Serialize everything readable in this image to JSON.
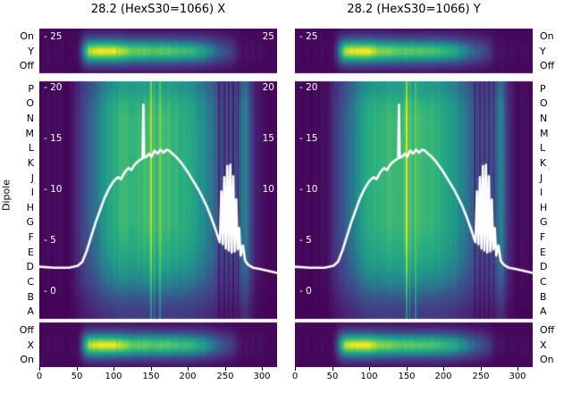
{
  "figure": {
    "background": "#ffffff",
    "text_color": "#000000"
  },
  "chart_data": {
    "type": "heatmap",
    "panels": [
      {
        "axis": "X",
        "title": "28.2 (HexS30=1066) X"
      },
      {
        "axis": "Y",
        "title": "28.2 (HexS30=1066) Y"
      }
    ],
    "ylabel": "Dipole",
    "x_ticks": [
      0,
      50,
      100,
      150,
      200,
      250,
      300
    ],
    "x_range": [
      0,
      320
    ],
    "inner_y_axis": {
      "values": [
        25,
        20,
        15,
        10,
        5,
        0
      ],
      "labels": [
        "- 25",
        "- 20",
        "- 15",
        "- 10",
        "- 5",
        "- 0"
      ]
    },
    "right_edge_labels": [
      "25",
      "20",
      "15",
      "10"
    ],
    "rows": {
      "top": [
        "On",
        "Y",
        "Off"
      ],
      "main": [
        "P",
        "O",
        "N",
        "M",
        "L",
        "K",
        "J",
        "I",
        "H",
        "G",
        "F",
        "E",
        "D",
        "C",
        "B",
        "A"
      ],
      "bottom": [
        "Off",
        "X",
        "On"
      ]
    },
    "curve_color": "#ffffff",
    "colormap": [
      {
        "t": 0.0,
        "c": "#440154"
      },
      {
        "t": 0.13,
        "c": "#481f70"
      },
      {
        "t": 0.25,
        "c": "#443983"
      },
      {
        "t": 0.38,
        "c": "#3b528b"
      },
      {
        "t": 0.5,
        "c": "#2c728e"
      },
      {
        "t": 0.62,
        "c": "#21918c"
      },
      {
        "t": 0.75,
        "c": "#27ad81"
      },
      {
        "t": 0.87,
        "c": "#5ec962"
      },
      {
        "t": 0.95,
        "c": "#addc30"
      },
      {
        "t": 1.0,
        "c": "#fde725"
      }
    ],
    "heatmap": {
      "main_profile": [
        [
          0,
          0.03
        ],
        [
          36,
          0.04
        ],
        [
          44,
          0.08
        ],
        [
          50,
          0.18
        ],
        [
          56,
          0.28
        ],
        [
          62,
          0.36
        ],
        [
          68,
          0.44
        ],
        [
          76,
          0.52
        ],
        [
          84,
          0.62
        ],
        [
          92,
          0.7
        ],
        [
          100,
          0.75
        ],
        [
          110,
          0.78
        ],
        [
          122,
          0.79
        ],
        [
          134,
          0.79
        ],
        [
          144,
          0.81
        ],
        [
          152,
          0.83
        ],
        [
          158,
          0.8
        ],
        [
          166,
          0.82
        ],
        [
          174,
          0.8
        ],
        [
          184,
          0.78
        ],
        [
          194,
          0.76
        ],
        [
          202,
          0.72
        ],
        [
          212,
          0.67
        ],
        [
          220,
          0.61
        ],
        [
          228,
          0.54
        ],
        [
          234,
          0.48
        ],
        [
          240,
          0.42
        ],
        [
          268,
          0.38
        ],
        [
          273,
          0.52
        ],
        [
          278,
          0.55
        ],
        [
          282,
          0.4
        ],
        [
          286,
          0.24
        ],
        [
          292,
          0.12
        ],
        [
          298,
          0.06
        ],
        [
          320,
          0.03
        ]
      ],
      "main_row_factors": [
        0.85,
        0.97,
        1,
        1,
        1,
        1,
        1,
        1,
        1,
        1,
        0.97,
        0.93,
        0.85,
        0.72,
        0.52,
        0.34
      ],
      "main_stripes": [
        {
          "x": 150,
          "w": 1.2,
          "v": 0.97
        },
        {
          "x": 154,
          "w": 0.8,
          "v": 0.88
        },
        {
          "x": 162,
          "w": 1.0,
          "v": 0.9
        },
        {
          "x": 241,
          "w": 1.2,
          "v": 0.16
        },
        {
          "x": 244.5,
          "w": 1.0,
          "v": 0.3
        },
        {
          "x": 248,
          "w": 1.2,
          "v": 0.14
        },
        {
          "x": 251,
          "w": 0.8,
          "v": 0.32
        },
        {
          "x": 254,
          "w": 1.2,
          "v": 0.15
        },
        {
          "x": 257.5,
          "w": 1.0,
          "v": 0.3
        },
        {
          "x": 261,
          "w": 1.2,
          "v": 0.13
        },
        {
          "x": 264,
          "w": 0.8,
          "v": 0.3
        },
        {
          "x": 267,
          "w": 1.0,
          "v": 0.16
        }
      ],
      "strip_profile": [
        [
          0,
          0.03
        ],
        [
          50,
          0.04
        ],
        [
          55,
          0.25
        ],
        [
          60,
          0.65
        ],
        [
          66,
          0.95
        ],
        [
          78,
          1.0
        ],
        [
          98,
          1.0
        ],
        [
          112,
          0.93
        ],
        [
          130,
          0.88
        ],
        [
          150,
          0.86
        ],
        [
          170,
          0.86
        ],
        [
          190,
          0.82
        ],
        [
          205,
          0.78
        ],
        [
          218,
          0.7
        ],
        [
          228,
          0.6
        ],
        [
          236,
          0.5
        ],
        [
          244,
          0.42
        ],
        [
          252,
          0.34
        ],
        [
          260,
          0.26
        ],
        [
          266,
          0.14
        ],
        [
          272,
          0.07
        ],
        [
          320,
          0.03
        ]
      ]
    },
    "curve": [
      [
        0,
        2.4
      ],
      [
        20,
        2.3
      ],
      [
        40,
        2.3
      ],
      [
        52,
        2.5
      ],
      [
        58,
        2.9
      ],
      [
        64,
        4.0
      ],
      [
        70,
        5.4
      ],
      [
        76,
        6.8
      ],
      [
        82,
        8.0
      ],
      [
        88,
        9.2
      ],
      [
        94,
        10.1
      ],
      [
        100,
        10.8
      ],
      [
        106,
        11.2
      ],
      [
        110,
        11.0
      ],
      [
        115,
        11.7
      ],
      [
        120,
        12.1
      ],
      [
        124,
        11.9
      ],
      [
        128,
        12.4
      ],
      [
        132,
        12.7
      ],
      [
        136,
        12.9
      ],
      [
        138,
        13.0
      ],
      [
        139,
        13.1
      ],
      [
        140,
        18.3
      ],
      [
        141,
        13.1
      ],
      [
        144,
        13.2
      ],
      [
        148,
        13.5
      ],
      [
        151,
        13.2
      ],
      [
        155,
        13.8
      ],
      [
        159,
        13.5
      ],
      [
        163,
        13.9
      ],
      [
        167,
        13.6
      ],
      [
        171,
        13.9
      ],
      [
        175,
        13.8
      ],
      [
        179,
        13.5
      ],
      [
        184,
        13.2
      ],
      [
        189,
        12.8
      ],
      [
        194,
        12.3
      ],
      [
        199,
        11.8
      ],
      [
        204,
        11.2
      ],
      [
        209,
        10.6
      ],
      [
        214,
        10.0
      ],
      [
        219,
        9.3
      ],
      [
        225,
        8.4
      ],
      [
        231,
        7.3
      ],
      [
        237,
        6.1
      ],
      [
        241,
        5.2
      ],
      [
        243,
        4.8
      ],
      [
        245,
        9.8
      ],
      [
        247,
        4.6
      ],
      [
        249,
        11.2
      ],
      [
        251,
        4.2
      ],
      [
        253,
        12.3
      ],
      [
        255,
        4.0
      ],
      [
        257,
        12.4
      ],
      [
        259,
        3.8
      ],
      [
        261,
        11.3
      ],
      [
        263,
        3.9
      ],
      [
        265,
        9.0
      ],
      [
        267,
        4.1
      ],
      [
        269,
        6.2
      ],
      [
        271,
        3.5
      ],
      [
        274,
        4.5
      ],
      [
        277,
        3.0
      ],
      [
        281,
        2.6
      ],
      [
        288,
        2.3
      ],
      [
        296,
        2.2
      ],
      [
        308,
        2.0
      ],
      [
        320,
        1.8
      ]
    ]
  }
}
